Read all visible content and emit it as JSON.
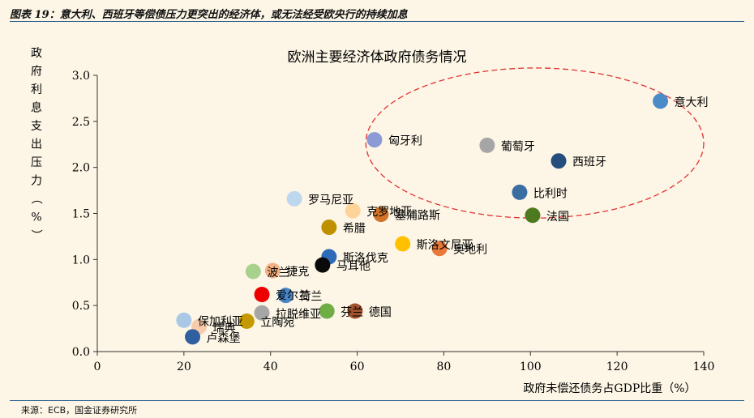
{
  "header": {
    "title": "图表 19：意大利、西班牙等偿债压力更突出的经济体，或无法经受欧央行的持续加息"
  },
  "source": "来源：ECB，国金证券研究所",
  "colors": {
    "rule": "#2d5f91",
    "background": "#fdf6e6",
    "highlight_ellipse": "#e03030"
  },
  "chart_data": {
    "type": "scatter",
    "title": "欧洲主要经济体政府债务情况",
    "xlabel": "政府未偿还债务占GDP比重（%）",
    "ylabel": "政府利息支出压力（%）",
    "xlim": [
      0,
      140
    ],
    "ylim": [
      0,
      3.0
    ],
    "x_ticks": [
      "0",
      "20",
      "40",
      "60",
      "80",
      "100",
      "120",
      "140"
    ],
    "y_ticks": [
      "0.0",
      "0.5",
      "1.0",
      "1.5",
      "2.0",
      "2.5",
      "3.0"
    ],
    "grid": false,
    "legend": "none",
    "highlight": {
      "type": "dashed-ellipse",
      "x_range": [
        62,
        140
      ],
      "y_range": [
        1.45,
        3.08
      ]
    },
    "points": [
      {
        "name": "意大利",
        "x": 130,
        "y": 2.72,
        "color": "#4b8bc8"
      },
      {
        "name": "西班牙",
        "x": 106.5,
        "y": 2.07,
        "color": "#254e7d"
      },
      {
        "name": "葡萄牙",
        "x": 90,
        "y": 2.24,
        "color": "#a6a6a6"
      },
      {
        "name": "匈牙利",
        "x": 64,
        "y": 2.3,
        "color": "#8c9bd6"
      },
      {
        "name": "比利时",
        "x": 97.5,
        "y": 1.73,
        "color": "#3b6ea0"
      },
      {
        "name": "法国",
        "x": 100.5,
        "y": 1.48,
        "color": "#4e7a1f"
      },
      {
        "name": "罗马尼亚",
        "x": 45.5,
        "y": 1.66,
        "color": "#bdd7ee"
      },
      {
        "name": "克罗地亚",
        "x": 59,
        "y": 1.53,
        "color": "#fdd39a"
      },
      {
        "name": "塞浦路斯",
        "x": 65.5,
        "y": 1.49,
        "color": "#d1742a"
      },
      {
        "name": "希腊",
        "x": 53.5,
        "y": 1.35,
        "color": "#bf9000"
      },
      {
        "name": "斯洛文尼亚",
        "x": 70.5,
        "y": 1.17,
        "color": "#ffc000"
      },
      {
        "name": "奥地利",
        "x": 79,
        "y": 1.12,
        "color": "#e8793a"
      },
      {
        "name": "斯洛伐克",
        "x": 53.5,
        "y": 1.03,
        "color": "#2f6ab8"
      },
      {
        "name": "马耳他",
        "x": 52,
        "y": 0.94,
        "color": "#0a0a0a"
      },
      {
        "name": "波兰",
        "x": 36,
        "y": 0.87,
        "color": "#a9d18e"
      },
      {
        "name": "捷克",
        "x": 40.5,
        "y": 0.88,
        "color": "#f4b183"
      },
      {
        "name": "爱尔兰",
        "x": 38,
        "y": 0.62,
        "color": "#ee0000"
      },
      {
        "name": "荷兰",
        "x": 43.5,
        "y": 0.61,
        "color": "#4b87c8"
      },
      {
        "name": "拉脱维亚",
        "x": 38,
        "y": 0.42,
        "color": "#a6a6a6"
      },
      {
        "name": "芬兰",
        "x": 53,
        "y": 0.44,
        "color": "#70ad47"
      },
      {
        "name": "德国",
        "x": 59.5,
        "y": 0.44,
        "color": "#a0522d"
      },
      {
        "name": "保加利亚",
        "x": 20,
        "y": 0.34,
        "color": "#a8c8e6"
      },
      {
        "name": "瑞典",
        "x": 23.5,
        "y": 0.27,
        "color": "#f8cbad"
      },
      {
        "name": "立陶宛",
        "x": 34.5,
        "y": 0.33,
        "color": "#c49a00"
      },
      {
        "name": "卢森堡",
        "x": 22,
        "y": 0.16,
        "color": "#2f5f9e"
      }
    ]
  }
}
